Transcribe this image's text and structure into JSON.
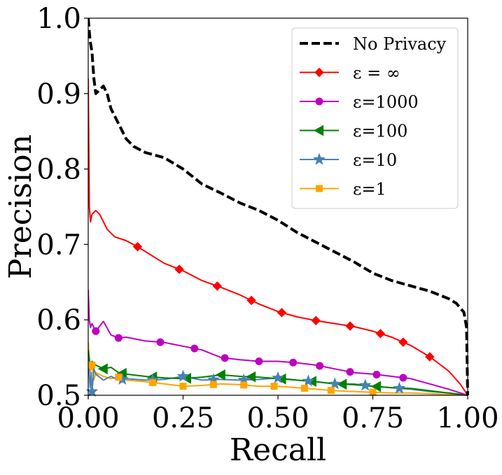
{
  "chart_data": {
    "type": "line",
    "title": "",
    "xlabel": "Recall",
    "ylabel": "Precision",
    "xlim": [
      0.0,
      1.0
    ],
    "ylim": [
      0.5,
      1.0
    ],
    "xticks": [
      0.0,
      0.25,
      0.5,
      0.75,
      1.0
    ],
    "xtick_labels": [
      "0.00",
      "0.25",
      "0.50",
      "0.75",
      "1.00"
    ],
    "yticks": [
      0.5,
      0.6,
      0.7,
      0.8,
      0.9,
      1.0
    ],
    "ytick_labels": [
      "0.5",
      "0.6",
      "0.7",
      "0.8",
      "0.9",
      "1.0"
    ],
    "grid": false,
    "legend_position": "top-right",
    "series": [
      {
        "name": "No Privacy",
        "color": "#000000",
        "style": "dashed",
        "marker": "none",
        "width": 4,
        "x": [
          0.0,
          0.005,
          0.01,
          0.015,
          0.02,
          0.03,
          0.04,
          0.05,
          0.06,
          0.07,
          0.08,
          0.1,
          0.12,
          0.15,
          0.2,
          0.25,
          0.3,
          0.35,
          0.4,
          0.45,
          0.5,
          0.55,
          0.6,
          0.65,
          0.7,
          0.75,
          0.8,
          0.85,
          0.9,
          0.95,
          0.97,
          0.99,
          0.997,
          1.0
        ],
        "y": [
          1.0,
          0.97,
          0.955,
          0.92,
          0.9,
          0.905,
          0.91,
          0.9,
          0.88,
          0.87,
          0.86,
          0.84,
          0.83,
          0.822,
          0.815,
          0.8,
          0.78,
          0.768,
          0.755,
          0.745,
          0.732,
          0.716,
          0.703,
          0.69,
          0.677,
          0.662,
          0.652,
          0.645,
          0.638,
          0.628,
          0.622,
          0.61,
          0.59,
          0.5
        ]
      },
      {
        "name": "ε = ∞",
        "color": "#ff0000",
        "style": "solid",
        "marker": "diamond",
        "width": 2,
        "x": [
          0.0,
          0.003,
          0.006,
          0.01,
          0.02,
          0.03,
          0.05,
          0.07,
          0.1,
          0.13,
          0.2,
          0.25,
          0.3,
          0.35,
          0.4,
          0.45,
          0.5,
          0.55,
          0.6,
          0.65,
          0.7,
          0.75,
          0.8,
          0.85,
          0.9,
          0.95,
          0.98,
          1.0
        ],
        "y": [
          0.92,
          0.75,
          0.73,
          0.74,
          0.745,
          0.74,
          0.72,
          0.71,
          0.705,
          0.697,
          0.675,
          0.665,
          0.652,
          0.643,
          0.633,
          0.621,
          0.611,
          0.604,
          0.599,
          0.595,
          0.591,
          0.585,
          0.577,
          0.566,
          0.551,
          0.532,
          0.515,
          0.5
        ],
        "marker_x": [
          0.13,
          0.24,
          0.34,
          0.43,
          0.51,
          0.6,
          0.69,
          0.77,
          0.83,
          0.9
        ]
      },
      {
        "name": "ε=1000",
        "color": "#bf00bf",
        "style": "solid",
        "marker": "circle",
        "width": 2,
        "x": [
          0.0,
          0.003,
          0.006,
          0.01,
          0.02,
          0.04,
          0.06,
          0.08,
          0.1,
          0.15,
          0.2,
          0.3,
          0.35,
          0.4,
          0.45,
          0.5,
          0.55,
          0.6,
          0.65,
          0.7,
          0.75,
          0.8,
          0.85,
          0.9,
          0.95,
          1.0
        ],
        "y": [
          0.64,
          0.6,
          0.59,
          0.595,
          0.585,
          0.598,
          0.58,
          0.576,
          0.577,
          0.572,
          0.57,
          0.56,
          0.55,
          0.547,
          0.545,
          0.545,
          0.543,
          0.54,
          0.535,
          0.53,
          0.528,
          0.525,
          0.522,
          0.515,
          0.508,
          0.5
        ],
        "marker_x": [
          0.02,
          0.08,
          0.19,
          0.28,
          0.36,
          0.45,
          0.54,
          0.61,
          0.69,
          0.76,
          0.83
        ]
      },
      {
        "name": "ε=100",
        "color": "#008000",
        "style": "solid",
        "marker": "triangle-left",
        "width": 2,
        "x": [
          0.0,
          0.005,
          0.01,
          0.02,
          0.04,
          0.06,
          0.08,
          0.1,
          0.15,
          0.2,
          0.25,
          0.3,
          0.35,
          0.4,
          0.45,
          0.5,
          0.55,
          0.6,
          0.65,
          0.7,
          0.75,
          0.8,
          0.85,
          0.9,
          0.95,
          1.0
        ],
        "y": [
          0.56,
          0.54,
          0.545,
          0.54,
          0.535,
          0.537,
          0.53,
          0.528,
          0.525,
          0.523,
          0.522,
          0.524,
          0.527,
          0.525,
          0.524,
          0.522,
          0.52,
          0.518,
          0.515,
          0.514,
          0.512,
          0.51,
          0.509,
          0.506,
          0.503,
          0.5
        ],
        "marker_x": [
          0.04,
          0.09,
          0.17,
          0.26,
          0.35,
          0.43,
          0.51,
          0.59,
          0.67,
          0.76
        ]
      },
      {
        "name": "ε=10",
        "color": "#4682b4",
        "style": "solid",
        "marker": "star",
        "width": 2,
        "x": [
          0.0,
          0.005,
          0.008,
          0.01,
          0.015,
          0.02,
          0.04,
          0.06,
          0.08,
          0.1,
          0.15,
          0.2,
          0.25,
          0.3,
          0.35,
          0.4,
          0.45,
          0.5,
          0.55,
          0.6,
          0.65,
          0.7,
          0.75,
          0.8,
          0.85,
          0.9,
          0.95,
          1.0
        ],
        "y": [
          0.55,
          0.51,
          0.53,
          0.505,
          0.535,
          0.528,
          0.52,
          0.525,
          0.52,
          0.522,
          0.52,
          0.521,
          0.525,
          0.52,
          0.521,
          0.52,
          0.521,
          0.523,
          0.52,
          0.518,
          0.515,
          0.515,
          0.512,
          0.51,
          0.508,
          0.505,
          0.503,
          0.5
        ],
        "marker_x": [
          0.01,
          0.09,
          0.17,
          0.25,
          0.33,
          0.41,
          0.5,
          0.58,
          0.65,
          0.73,
          0.82
        ]
      },
      {
        "name": "ε=1",
        "color": "#ffa500",
        "style": "solid",
        "marker": "square",
        "width": 2,
        "x": [
          0.0,
          0.005,
          0.01,
          0.015,
          0.02,
          0.04,
          0.06,
          0.08,
          0.1,
          0.15,
          0.2,
          0.25,
          0.3,
          0.35,
          0.4,
          0.45,
          0.5,
          0.55,
          0.6,
          0.65,
          0.7,
          0.75,
          0.8,
          0.85,
          0.9,
          0.95,
          1.0
        ],
        "y": [
          0.57,
          0.53,
          0.54,
          0.52,
          0.53,
          0.525,
          0.522,
          0.524,
          0.52,
          0.518,
          0.515,
          0.512,
          0.513,
          0.515,
          0.514,
          0.512,
          0.512,
          0.51,
          0.508,
          0.506,
          0.505,
          0.504,
          0.503,
          0.503,
          0.502,
          0.501,
          0.5
        ],
        "marker_x": [
          0.01,
          0.08,
          0.17,
          0.25,
          0.33,
          0.41,
          0.49,
          0.57,
          0.64,
          0.75
        ]
      }
    ]
  }
}
